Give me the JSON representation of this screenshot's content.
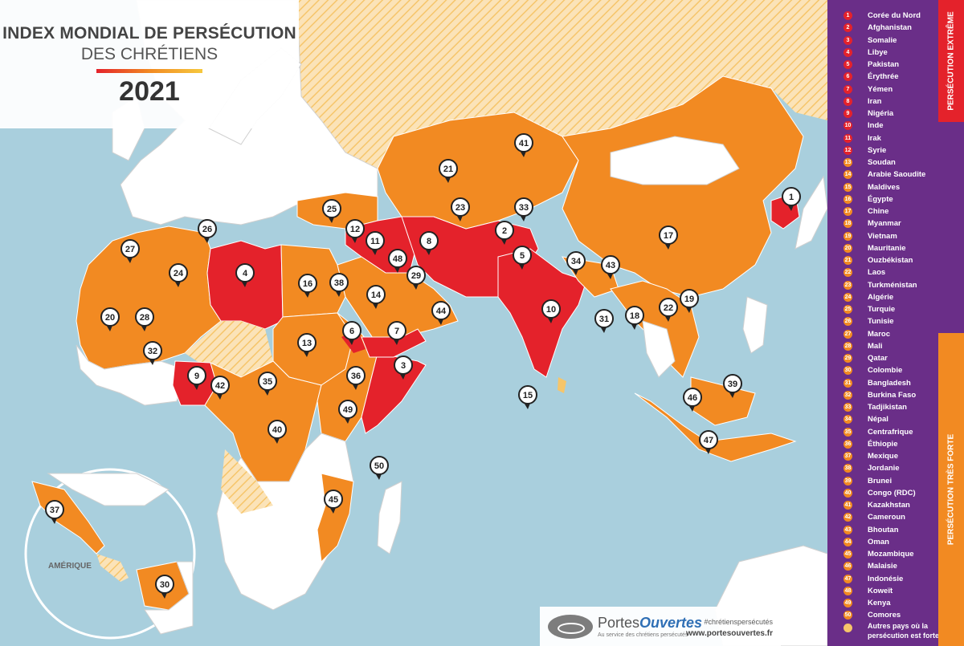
{
  "title": {
    "line1": "INDEX MONDIAL DE PERSÉCUTION",
    "line2": "DES CHRÉTIENS",
    "year": "2021"
  },
  "legend_bands": {
    "extreme": "PERSÉCUTION EXTRÊME",
    "strong": "PERSÉCUTION TRÈS FORTE"
  },
  "colors": {
    "extreme": "#e4222b",
    "very_strong": "#f28a22",
    "other": "#f6c56a",
    "ocean": "#a9cfdd",
    "land_other": "#ffffff",
    "legend_bg": "#6a2e88"
  },
  "countries": [
    {
      "rank": 1,
      "name": "Corée du Nord",
      "level": "extreme"
    },
    {
      "rank": 2,
      "name": "Afghanistan",
      "level": "extreme"
    },
    {
      "rank": 3,
      "name": "Somalie",
      "level": "extreme"
    },
    {
      "rank": 4,
      "name": "Libye",
      "level": "extreme"
    },
    {
      "rank": 5,
      "name": "Pakistan",
      "level": "extreme"
    },
    {
      "rank": 6,
      "name": "Érythrée",
      "level": "extreme"
    },
    {
      "rank": 7,
      "name": "Yémen",
      "level": "extreme"
    },
    {
      "rank": 8,
      "name": "Iran",
      "level": "extreme"
    },
    {
      "rank": 9,
      "name": "Nigéria",
      "level": "extreme"
    },
    {
      "rank": 10,
      "name": "Inde",
      "level": "extreme"
    },
    {
      "rank": 11,
      "name": "Irak",
      "level": "extreme"
    },
    {
      "rank": 12,
      "name": "Syrie",
      "level": "extreme"
    },
    {
      "rank": 13,
      "name": "Soudan",
      "level": "very_strong"
    },
    {
      "rank": 14,
      "name": "Arabie Saoudite",
      "level": "very_strong"
    },
    {
      "rank": 15,
      "name": "Maldives",
      "level": "very_strong"
    },
    {
      "rank": 16,
      "name": "Égypte",
      "level": "very_strong"
    },
    {
      "rank": 17,
      "name": "Chine",
      "level": "very_strong"
    },
    {
      "rank": 18,
      "name": "Myanmar",
      "level": "very_strong"
    },
    {
      "rank": 19,
      "name": "Vietnam",
      "level": "very_strong"
    },
    {
      "rank": 20,
      "name": "Mauritanie",
      "level": "very_strong"
    },
    {
      "rank": 21,
      "name": "Ouzbékistan",
      "level": "very_strong"
    },
    {
      "rank": 22,
      "name": "Laos",
      "level": "very_strong"
    },
    {
      "rank": 23,
      "name": "Turkménistan",
      "level": "very_strong"
    },
    {
      "rank": 24,
      "name": "Algérie",
      "level": "very_strong"
    },
    {
      "rank": 25,
      "name": "Turquie",
      "level": "very_strong"
    },
    {
      "rank": 26,
      "name": "Tunisie",
      "level": "very_strong"
    },
    {
      "rank": 27,
      "name": "Maroc",
      "level": "very_strong"
    },
    {
      "rank": 28,
      "name": "Mali",
      "level": "very_strong"
    },
    {
      "rank": 29,
      "name": "Qatar",
      "level": "very_strong"
    },
    {
      "rank": 30,
      "name": "Colombie",
      "level": "very_strong"
    },
    {
      "rank": 31,
      "name": "Bangladesh",
      "level": "very_strong"
    },
    {
      "rank": 32,
      "name": "Burkina Faso",
      "level": "very_strong"
    },
    {
      "rank": 33,
      "name": "Tadjikistan",
      "level": "very_strong"
    },
    {
      "rank": 34,
      "name": "Népal",
      "level": "very_strong"
    },
    {
      "rank": 35,
      "name": "Centrafrique",
      "level": "very_strong"
    },
    {
      "rank": 36,
      "name": "Éthiopie",
      "level": "very_strong"
    },
    {
      "rank": 37,
      "name": "Mexique",
      "level": "very_strong"
    },
    {
      "rank": 38,
      "name": "Jordanie",
      "level": "very_strong"
    },
    {
      "rank": 39,
      "name": "Brunei",
      "level": "very_strong"
    },
    {
      "rank": 40,
      "name": "Congo (RDC)",
      "level": "very_strong"
    },
    {
      "rank": 41,
      "name": "Kazakhstan",
      "level": "very_strong"
    },
    {
      "rank": 42,
      "name": "Cameroun",
      "level": "very_strong"
    },
    {
      "rank": 43,
      "name": "Bhoutan",
      "level": "very_strong"
    },
    {
      "rank": 44,
      "name": "Oman",
      "level": "very_strong"
    },
    {
      "rank": 45,
      "name": "Mozambique",
      "level": "very_strong"
    },
    {
      "rank": 46,
      "name": "Malaisie",
      "level": "very_strong"
    },
    {
      "rank": 47,
      "name": "Indonésie",
      "level": "very_strong"
    },
    {
      "rank": 48,
      "name": "Koweït",
      "level": "very_strong"
    },
    {
      "rank": 49,
      "name": "Kenya",
      "level": "very_strong"
    },
    {
      "rank": 50,
      "name": "Comores",
      "level": "very_strong"
    }
  ],
  "other_label": "Autres pays où la persécution est forte",
  "inset_label": "AMÉRIQUE",
  "footer": {
    "logo_name_a": "Portes",
    "logo_name_b": "Ouvertes",
    "tagline": "Au service des chrétiens persécutés",
    "hashtag": "#chrétienspersécutés",
    "url": "www.portesouvertes.fr"
  }
}
